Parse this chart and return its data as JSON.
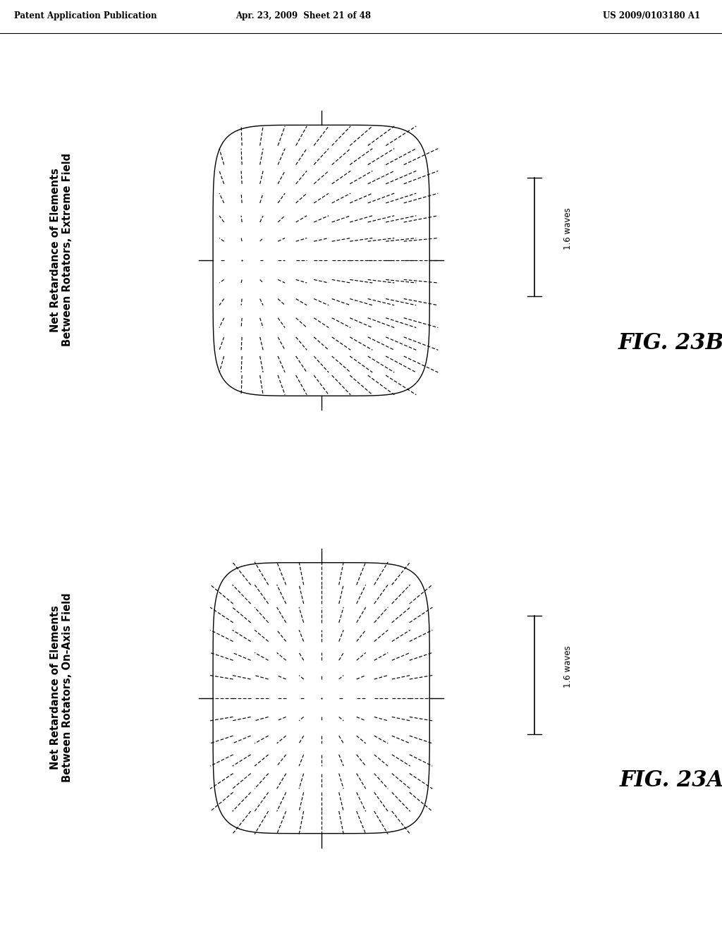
{
  "header_left": "Patent Application Publication",
  "header_mid": "Apr. 23, 2009  Sheet 21 of 48",
  "header_right": "US 2009/0103180 A1",
  "fig_a_label": "FIG. 23A",
  "fig_b_label": "FIG. 23B",
  "label_a_line1": "Net Retardance of Elements",
  "label_a_line2": "Between Rotators, On-Axis Field",
  "label_b_line1": "Net Retardance of Elements",
  "label_b_line2": "Between Rotators, Extreme Field",
  "scale_text": "1.6 waves",
  "background": "#ffffff",
  "line_color": "#000000"
}
